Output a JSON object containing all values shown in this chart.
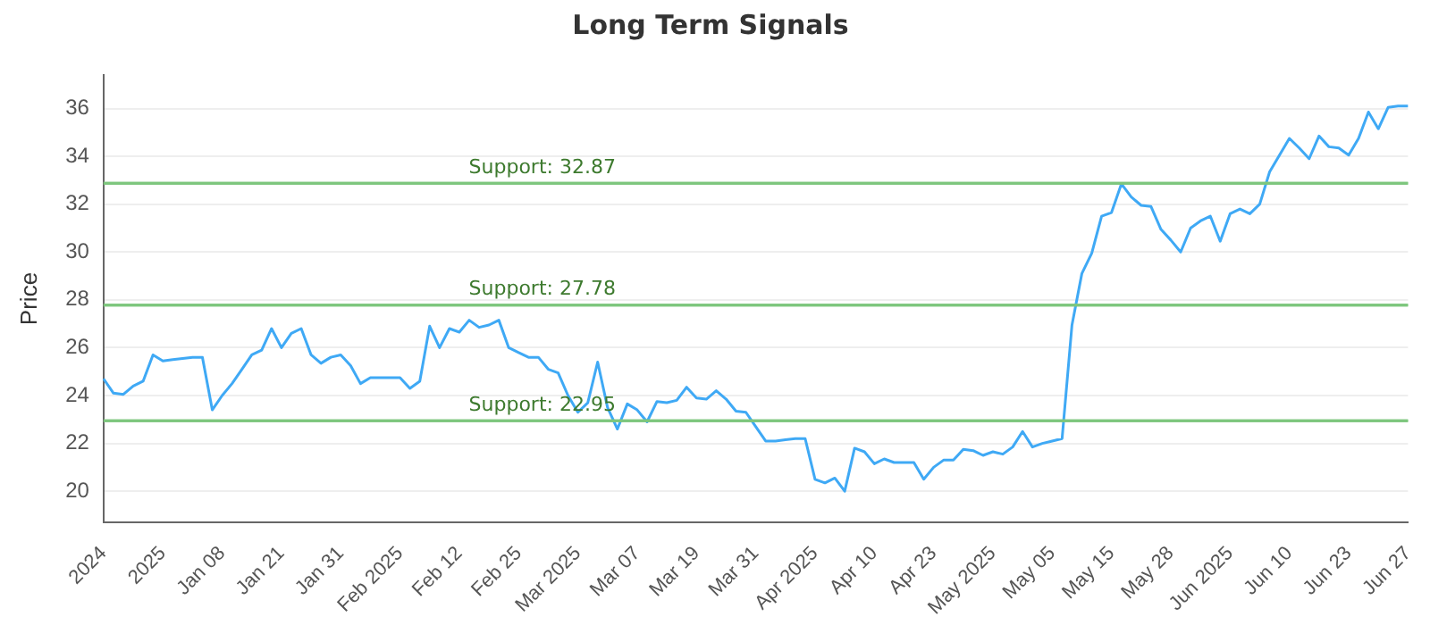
{
  "chart_data": {
    "type": "line",
    "title": "Long Term Signals",
    "ylabel": "Price",
    "categories": [
      "2024",
      null,
      null,
      null,
      null,
      null,
      "2025",
      null,
      null,
      null,
      null,
      null,
      "Jan 08",
      null,
      null,
      null,
      null,
      null,
      "Jan 21",
      null,
      null,
      null,
      null,
      null,
      "Jan 31",
      null,
      null,
      null,
      null,
      null,
      "Feb 2025",
      null,
      null,
      null,
      null,
      null,
      "Feb 12",
      null,
      null,
      null,
      null,
      null,
      "Feb 25",
      null,
      null,
      null,
      null,
      null,
      "Mar 2025",
      null,
      null,
      null,
      null,
      null,
      "Mar 07",
      null,
      null,
      null,
      null,
      null,
      "Mar 19",
      null,
      null,
      null,
      null,
      null,
      "Mar 31",
      null,
      null,
      null,
      null,
      null,
      "Apr 2025",
      null,
      null,
      null,
      null,
      null,
      "Apr 10",
      null,
      null,
      null,
      null,
      null,
      "Apr 23",
      null,
      null,
      null,
      null,
      null,
      "May 2025",
      null,
      null,
      null,
      null,
      null,
      "May 05",
      null,
      null,
      null,
      null,
      null,
      "May 15",
      null,
      null,
      null,
      null,
      null,
      "May 28",
      null,
      null,
      null,
      null,
      null,
      "Jun 2025",
      null,
      null,
      null,
      null,
      null,
      "Jun 10",
      null,
      null,
      null,
      null,
      null,
      "Jun 23",
      null,
      null,
      null,
      null,
      null,
      "Jun 27"
    ],
    "series": [
      {
        "color": "#3fa9f5",
        "values": [
          24.7,
          24.1,
          24.05,
          24.4,
          24.6,
          25.7,
          25.45,
          25.5,
          25.55,
          25.6,
          25.6,
          23.4,
          24.0,
          24.5,
          25.1,
          25.7,
          25.9,
          26.8,
          26.0,
          26.6,
          26.8,
          25.7,
          25.35,
          25.6,
          25.7,
          25.25,
          24.5,
          24.75,
          24.75,
          24.75,
          24.75,
          24.3,
          24.6,
          26.9,
          26.0,
          26.8,
          26.65,
          27.15,
          26.85,
          26.95,
          27.15,
          26.0,
          25.8,
          25.6,
          25.6,
          25.1,
          24.95,
          24.0,
          23.3,
          23.7,
          25.4,
          23.5,
          22.6,
          23.65,
          23.4,
          22.9,
          23.75,
          23.7,
          23.8,
          24.35,
          23.9,
          23.85,
          24.2,
          23.85,
          23.35,
          23.3,
          22.7,
          22.1,
          22.1,
          22.15,
          22.2,
          22.2,
          20.5,
          20.35,
          20.55,
          20.0,
          21.8,
          21.65,
          21.15,
          21.35,
          21.2,
          21.2,
          21.2,
          20.5,
          21.0,
          21.3,
          21.3,
          21.75,
          21.7,
          21.5,
          21.65,
          21.55,
          21.85,
          22.5,
          21.85,
          22.0,
          22.1,
          22.2,
          26.95,
          29.1,
          29.95,
          31.5,
          31.65,
          32.85,
          32.3,
          31.95,
          31.9,
          30.95,
          30.5,
          30.0,
          31.0,
          31.3,
          31.5,
          30.45,
          31.6,
          31.8,
          31.6,
          32.0,
          33.35,
          34.05,
          34.75,
          34.35,
          33.9,
          34.85,
          34.4,
          34.35,
          34.05,
          34.75,
          35.85,
          35.15,
          36.05,
          36.1,
          36.1
        ]
      }
    ],
    "ylim": [
      18.7,
      37.4
    ],
    "yticks": [
      20,
      22,
      24,
      26,
      28,
      30,
      32,
      34,
      36
    ],
    "grid": "y",
    "marker": "none",
    "line_style": "solid",
    "legend": false,
    "ref_lines": [
      {
        "axis": "y",
        "value": 32.87,
        "label": "Support: 32.87",
        "color": "#7dc67d"
      },
      {
        "axis": "y",
        "value": 27.78,
        "label": "Support: 27.78",
        "color": "#7dc67d"
      },
      {
        "axis": "y",
        "value": 22.95,
        "label": "Support: 22.95",
        "color": "#7dc67d"
      }
    ]
  }
}
